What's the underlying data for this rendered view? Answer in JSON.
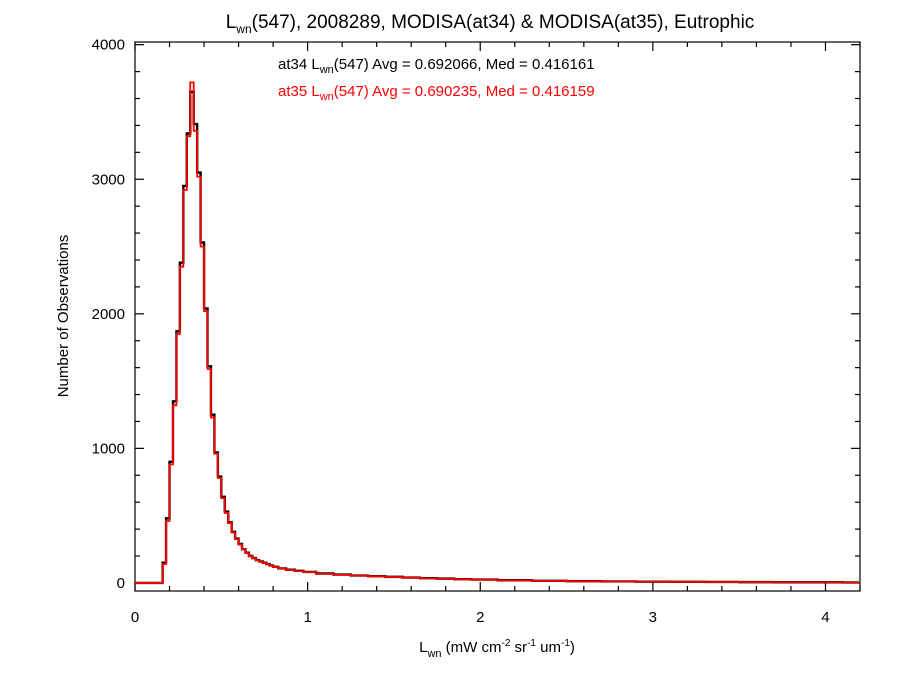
{
  "chart_data": {
    "type": "histogram",
    "title": {
      "main": "L",
      "sub": "wn",
      "rest": "(547), 2008289, MODISA(at34) & MODISA(at35), Eutrophic"
    },
    "xlabel": {
      "main": "L",
      "sub": "wn",
      "unit_pre": " (mW cm",
      "sup1": "-2",
      "mid1": " sr",
      "sup2": "-1",
      "mid2": " um",
      "sup3": "-1",
      "end": ")"
    },
    "ylabel": "Number of Observations",
    "xlim": [
      0,
      4.2
    ],
    "ylim": [
      -60,
      4020
    ],
    "x_ticks": [
      0,
      1,
      2,
      3,
      4
    ],
    "x_tick_labels": [
      "0",
      "1",
      "2",
      "3",
      "4"
    ],
    "y_ticks": [
      0,
      1000,
      2000,
      3000,
      4000
    ],
    "y_tick_labels": [
      "0",
      "1000",
      "2000",
      "3000",
      "4000"
    ],
    "series": [
      {
        "name": "at34",
        "color": "#000000",
        "stats_label": {
          "prefix": "at34 L",
          "sub": "wn",
          "rest": "(547) Avg = 0.692066, Med = 0.416161"
        }
      },
      {
        "name": "at35",
        "color": "#ff0000",
        "stats_label": {
          "prefix": "at35 L",
          "sub": "wn",
          "rest": "(547) Avg = 0.690235, Med = 0.416159"
        }
      }
    ],
    "histogram": {
      "bin_width": 0.02,
      "centers": [
        0.01,
        0.03,
        0.05,
        0.07,
        0.09,
        0.11,
        0.13,
        0.15,
        0.17,
        0.19,
        0.21,
        0.23,
        0.25,
        0.27,
        0.29,
        0.31,
        0.33,
        0.35,
        0.37,
        0.39,
        0.41,
        0.43,
        0.45,
        0.47,
        0.49,
        0.51,
        0.53,
        0.55,
        0.57,
        0.59,
        0.61,
        0.63,
        0.65,
        0.67,
        0.69,
        0.71,
        0.73,
        0.75,
        0.77,
        0.79,
        0.81,
        0.85,
        0.9,
        0.95,
        1.0,
        1.1,
        1.2,
        1.3,
        1.4,
        1.5,
        1.6,
        1.7,
        1.8,
        1.9,
        2.0,
        2.2,
        2.4,
        2.6,
        2.8,
        3.0,
        3.2,
        3.4,
        3.6,
        3.8,
        4.0,
        4.2
      ],
      "at34": [
        0,
        0,
        0,
        0,
        0,
        0,
        0,
        0,
        150,
        480,
        900,
        1350,
        1870,
        2380,
        2950,
        3340,
        3650,
        3410,
        3050,
        2530,
        2040,
        1610,
        1250,
        970,
        790,
        640,
        530,
        450,
        380,
        330,
        290,
        250,
        225,
        200,
        185,
        170,
        160,
        150,
        140,
        130,
        120,
        108,
        98,
        90,
        82,
        70,
        62,
        55,
        50,
        45,
        40,
        35,
        32,
        28,
        25,
        20,
        16,
        13,
        11,
        9,
        8,
        7,
        6,
        5,
        5,
        4
      ],
      "at35": [
        0,
        0,
        0,
        0,
        0,
        0,
        0,
        0,
        140,
        460,
        880,
        1320,
        1850,
        2350,
        2920,
        3320,
        3720,
        3360,
        3020,
        2500,
        2020,
        1590,
        1230,
        960,
        780,
        630,
        520,
        445,
        375,
        325,
        285,
        248,
        222,
        198,
        183,
        168,
        158,
        148,
        138,
        128,
        118,
        106,
        96,
        88,
        80,
        68,
        60,
        54,
        49,
        44,
        39,
        34,
        31,
        27,
        24,
        19,
        15,
        12,
        10,
        9,
        8,
        7,
        6,
        5,
        5,
        4
      ]
    }
  }
}
